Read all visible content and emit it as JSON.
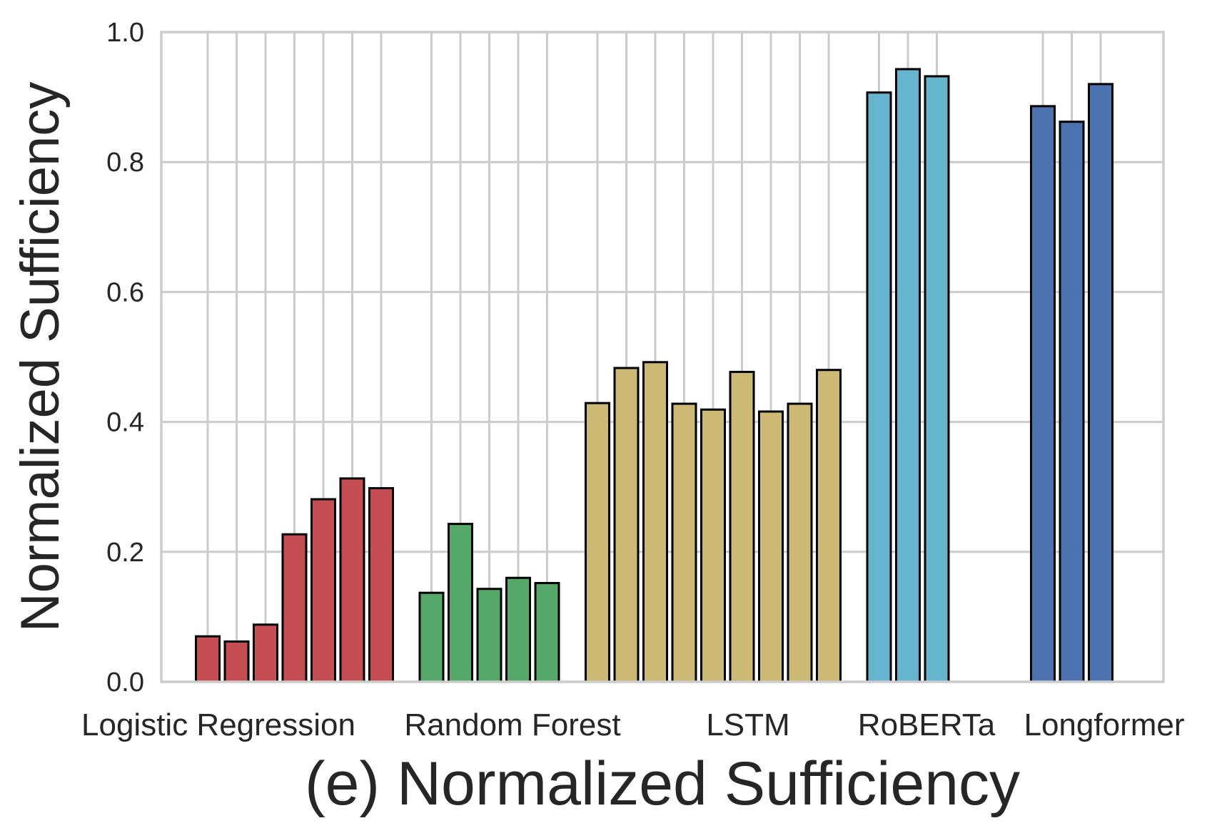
{
  "chart_data": {
    "type": "bar",
    "title": "",
    "xlabel": "(e) Normalized Sufficiency",
    "ylabel": "Normalized Sufficiency",
    "ylim": [
      0,
      1.0
    ],
    "yticks": [
      "0.0",
      "0.2",
      "0.4",
      "0.6",
      "0.8",
      "1.0"
    ],
    "grid": true,
    "groups": [
      {
        "name": "Logistic Regression",
        "color": "#c44e52",
        "values": [
          0.07,
          0.062,
          0.088,
          0.227,
          0.281,
          0.313,
          0.298
        ]
      },
      {
        "name": "Random Forest",
        "color": "#55a868",
        "values": [
          0.137,
          0.243,
          0.143,
          0.16,
          0.152
        ]
      },
      {
        "name": "LSTM",
        "color": "#ccb974",
        "values": [
          0.429,
          0.483,
          0.492,
          0.428,
          0.419,
          0.477,
          0.416,
          0.428,
          0.48
        ]
      },
      {
        "name": "RoBERTa",
        "color": "#64b5cd",
        "values": [
          0.907,
          0.943,
          0.932
        ]
      },
      {
        "name": "Longformer",
        "color": "#4c72b0",
        "values": [
          0.886,
          0.862,
          0.92
        ]
      }
    ]
  }
}
